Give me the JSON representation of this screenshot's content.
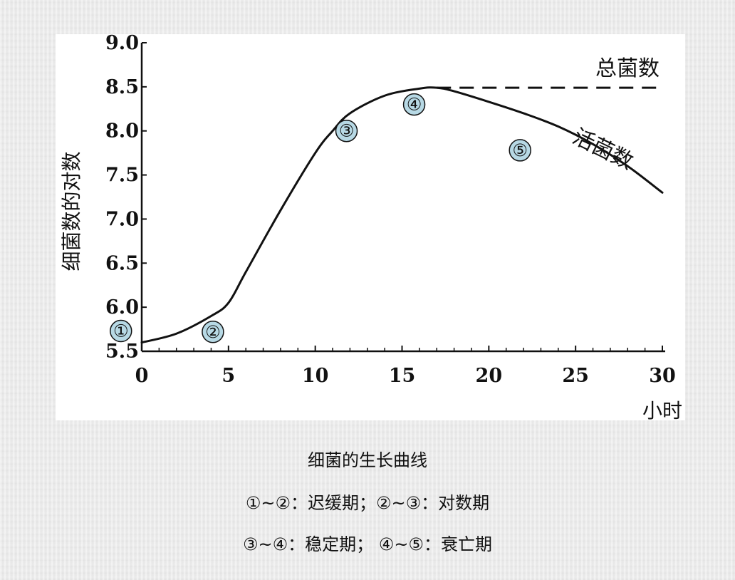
{
  "chart_data": {
    "type": "line",
    "xlabel": "小时",
    "ylabel": "细菌数的对数",
    "xlim": [
      0,
      30
    ],
    "ylim": [
      5.5,
      9.0
    ],
    "x_ticks": [
      "0",
      "5",
      "10",
      "15",
      "20",
      "25",
      "30"
    ],
    "y_ticks": [
      "5.5",
      "6.0",
      "6.5",
      "7.0",
      "7.5",
      "8.0",
      "8.5",
      "9.0"
    ],
    "series": [
      {
        "name": "活菌数",
        "style": "solid",
        "x": [
          0,
          2,
          4,
          5,
          6,
          8,
          10,
          11,
          12,
          14,
          16,
          17,
          18,
          20,
          22,
          24,
          26,
          28,
          30
        ],
        "y": [
          5.6,
          5.7,
          5.9,
          6.05,
          6.4,
          7.1,
          7.75,
          8.0,
          8.2,
          8.4,
          8.48,
          8.49,
          8.45,
          8.33,
          8.2,
          8.05,
          7.85,
          7.6,
          7.3
        ]
      },
      {
        "name": "总菌数",
        "style": "dashed",
        "x": [
          17,
          30
        ],
        "y": [
          8.49,
          8.49
        ]
      }
    ],
    "annotations": [
      {
        "label": "①",
        "x": -1.2,
        "y": 5.73
      },
      {
        "label": "②",
        "x": 4.1,
        "y": 5.72
      },
      {
        "label": "③",
        "x": 11.8,
        "y": 8.0
      },
      {
        "label": "④",
        "x": 15.7,
        "y": 8.3
      },
      {
        "label": "⑤",
        "x": 21.8,
        "y": 7.78
      }
    ],
    "grid": false,
    "marker_color": "#b7d9e5"
  },
  "caption": {
    "title": "细菌的生长曲线",
    "line1": "①~②：迟缓期；②~③：对数期",
    "line2": "③~④：稳定期； ④~⑤：衰亡期"
  }
}
